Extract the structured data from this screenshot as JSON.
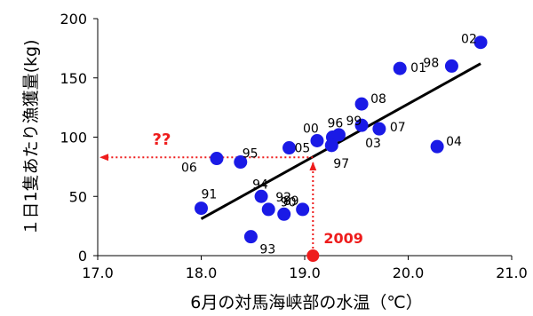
{
  "chart_data": {
    "type": "scatter",
    "xlabel": "6月の対馬海峡部の水温（℃）",
    "ylabel": "１日1隻あたり漁獲量(kg)",
    "xlim": [
      17.0,
      21.0
    ],
    "ylim": [
      0,
      200
    ],
    "xticks": [
      "17.0",
      "18.0",
      "19.0",
      "20.0",
      "21.0"
    ],
    "yticks": [
      "0",
      "50",
      "100",
      "150",
      "200"
    ],
    "grid": false,
    "series": [
      {
        "marker_color": "#1a1ae6",
        "points": [
          {
            "label": "89",
            "x": 18.98,
            "y": 39
          },
          {
            "label": "90",
            "x": 18.8,
            "y": 35
          },
          {
            "label": "91",
            "x": 18.0,
            "y": 40
          },
          {
            "label": "92",
            "x": 18.65,
            "y": 39
          },
          {
            "label": "93",
            "x": 18.48,
            "y": 16
          },
          {
            "label": "94",
            "x": 18.58,
            "y": 50
          },
          {
            "label": "95",
            "x": 18.38,
            "y": 79
          },
          {
            "label": "96",
            "x": 19.27,
            "y": 100
          },
          {
            "label": "97",
            "x": 19.26,
            "y": 93
          },
          {
            "label": "98",
            "x": 20.42,
            "y": 160
          },
          {
            "label": "99",
            "x": 19.33,
            "y": 102
          },
          {
            "label": "00",
            "x": 19.12,
            "y": 97
          },
          {
            "label": "01",
            "x": 19.92,
            "y": 158
          },
          {
            "label": "02",
            "x": 20.7,
            "y": 180
          },
          {
            "label": "03",
            "x": 19.55,
            "y": 110
          },
          {
            "label": "04",
            "x": 20.28,
            "y": 92
          },
          {
            "label": "05",
            "x": 18.85,
            "y": 91
          },
          {
            "label": "06",
            "x": 18.15,
            "y": 82
          },
          {
            "label": "07",
            "x": 19.72,
            "y": 107
          },
          {
            "label": "08",
            "x": 19.55,
            "y": 128
          }
        ]
      }
    ],
    "trendline": {
      "color": "#000000",
      "x": [
        18.0,
        20.7
      ],
      "y": [
        31,
        162
      ]
    },
    "highlight": {
      "label": "2009",
      "x": 19.08,
      "y": 0,
      "color": "#ee1c1c"
    },
    "estimate_label": "??",
    "estimate_y": 83
  }
}
